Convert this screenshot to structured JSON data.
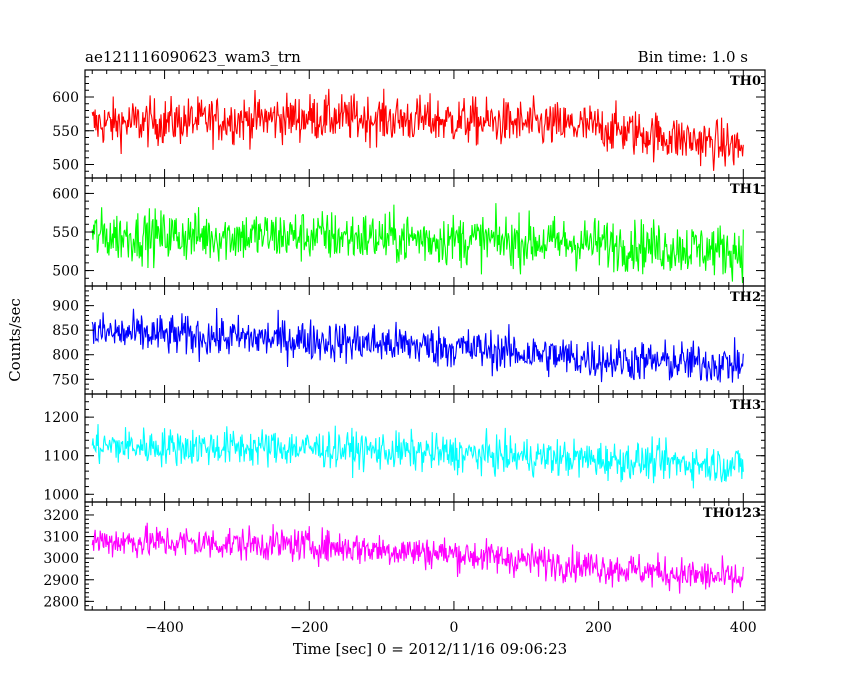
{
  "header": {
    "title": "ae121116090623_wam3_trn",
    "bin_time": "Bin time: 1.0 s"
  },
  "chart_data": {
    "type": "line",
    "xlabel": "Time [sec] 0 = 2012/11/16 09:06:23",
    "ylabel": "Counts/sec",
    "xlim": [
      -510,
      430
    ],
    "x_ticks": [
      -400,
      -200,
      0,
      200,
      400
    ],
    "x_range": [
      -500,
      400
    ],
    "panels": [
      {
        "name": "TH0",
        "color": "#ff0000",
        "ylim": [
          480,
          640
        ],
        "yticks": [
          500,
          550,
          600
        ],
        "trend": [
          [
            -500,
            560
          ],
          [
            -200,
            570
          ],
          [
            0,
            565
          ],
          [
            200,
            555
          ],
          [
            400,
            525
          ]
        ],
        "noise": 25
      },
      {
        "name": "TH1",
        "color": "#00ff00",
        "ylim": [
          480,
          620
        ],
        "yticks": [
          500,
          550,
          600
        ],
        "trend": [
          [
            -500,
            545
          ],
          [
            -200,
            545
          ],
          [
            0,
            540
          ],
          [
            200,
            535
          ],
          [
            400,
            525
          ]
        ],
        "noise": 24
      },
      {
        "name": "TH2",
        "color": "#0000ff",
        "ylim": [
          720,
          940
        ],
        "yticks": [
          750,
          800,
          850,
          900
        ],
        "trend": [
          [
            -500,
            845
          ],
          [
            -200,
            830
          ],
          [
            0,
            815
          ],
          [
            200,
            790
          ],
          [
            400,
            780
          ]
        ],
        "noise": 30
      },
      {
        "name": "TH3",
        "color": "#00ffff",
        "ylim": [
          980,
          1260
        ],
        "yticks": [
          1000,
          1100,
          1200
        ],
        "trend": [
          [
            -500,
            1125
          ],
          [
            -200,
            1120
          ],
          [
            0,
            1105
          ],
          [
            200,
            1090
          ],
          [
            400,
            1075
          ]
        ],
        "noise": 35
      },
      {
        "name": "TH0123",
        "color": "#ff00ff",
        "ylim": [
          2760,
          3260
        ],
        "yticks": [
          2800,
          2900,
          3000,
          3100,
          3200
        ],
        "trend": [
          [
            -500,
            3080
          ],
          [
            -200,
            3060
          ],
          [
            0,
            3020
          ],
          [
            200,
            2960
          ],
          [
            400,
            2900
          ]
        ],
        "noise": 55
      }
    ]
  }
}
